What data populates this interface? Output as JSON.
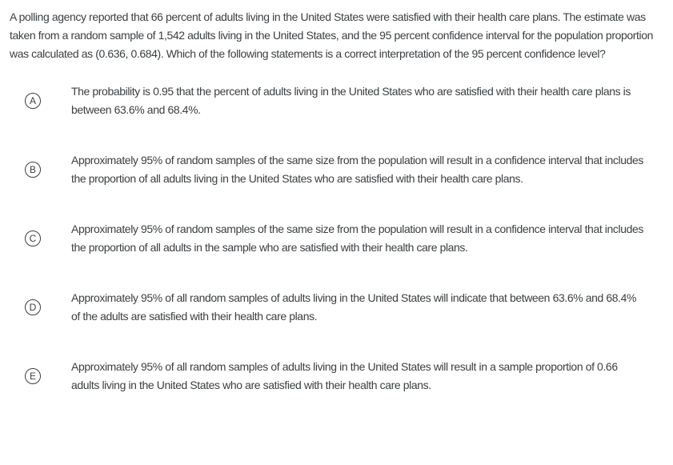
{
  "colors": {
    "background": "#ffffff",
    "text": "#3c4043",
    "badge_border": "#3c4043"
  },
  "question": {
    "text": "A polling agency reported that 66 percent of adults living in the United States were satisfied with their health care plans. The estimate was taken from a random sample of 1,542 adults living in the United States, and the 95 percent confidence interval for the population proportion was calculated as (0.636, 0.684). Which of the following statements is a correct interpretation of the 95 percent confidence level?"
  },
  "options": [
    {
      "letter": "A",
      "text": "The probability is 0.95 that the percent of adults living in the United States who are satisfied with their health care plans is between 63.6% and 68.4%."
    },
    {
      "letter": "B",
      "text": "Approximately 95% of random samples of the same size from the population will result in a confidence interval that includes the proportion of all adults living in the United States who are satisfied with their health care plans."
    },
    {
      "letter": "C",
      "text": "Approximately 95% of random samples of the same size from the population will result in a confidence interval that includes the proportion of all adults in the sample who are satisfied with their health care plans."
    },
    {
      "letter": "D",
      "text": "Approximately 95% of all random samples of adults living in the United States will indicate that between 63.6% and 68.4% of the adults are satisfied with their health care plans."
    },
    {
      "letter": "E",
      "text": "Approximately 95% of all random samples of adults living in the United States will result in a sample proportion of 0.66 adults living in the United States who are satisfied with their health care plans."
    }
  ]
}
